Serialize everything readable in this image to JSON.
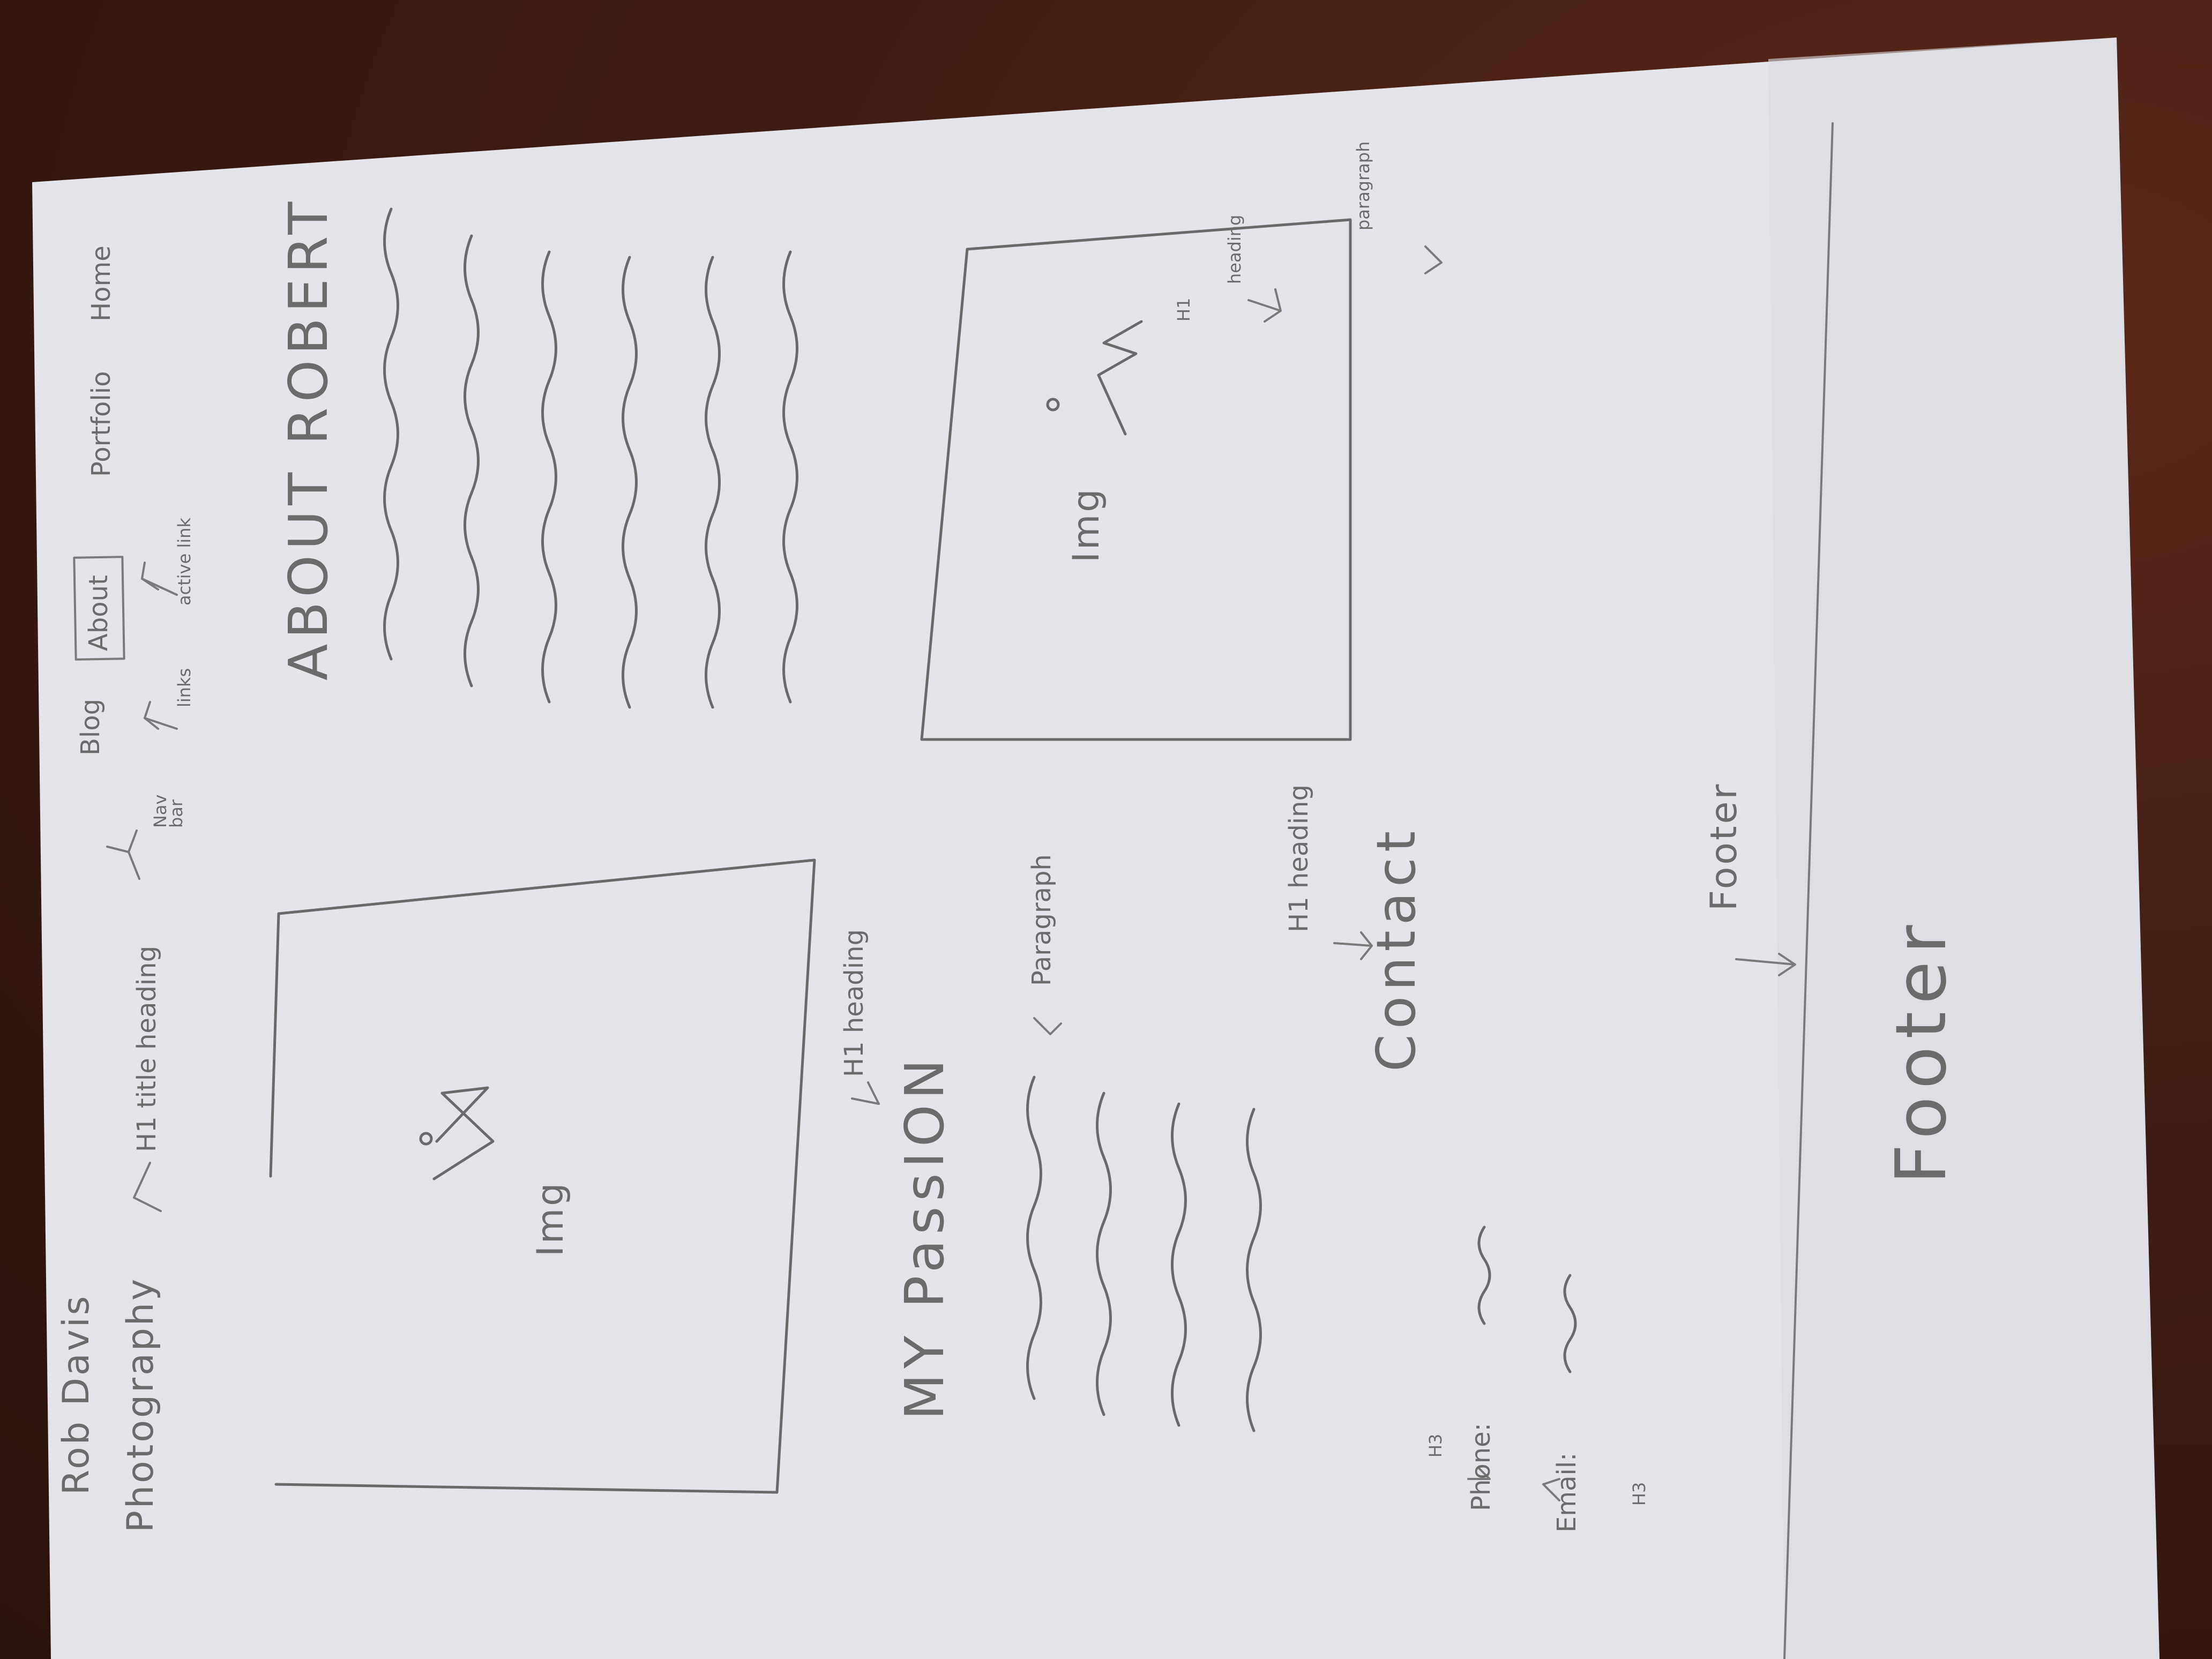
{
  "photo": {
    "subject": "hand-drawn website wireframe sketch on paper",
    "colors": {
      "table": "#3d1c14",
      "paper": "#e6e7ec",
      "pencil": "#6a6a6a"
    }
  },
  "sketch": {
    "site_title_line1": "Rob Davis",
    "site_title_line2": "Photography",
    "title_note": "H1 title heading",
    "nav_bar_label_line1": "Nav",
    "nav_bar_label_line2": "bar",
    "nav_links": [
      "Blog",
      "About",
      "Portfolio",
      "Home"
    ],
    "links_note": "links",
    "active_link_note": "active link",
    "about_heading": "ABOUT ROBERT",
    "about_h1_note": "H1",
    "about_heading_note": "heading",
    "about_paragraph_note": "paragraph",
    "img_label_1": "Img",
    "img_label_2": "Img",
    "passion_heading": "MY PassION",
    "passion_h1_note": "H1 heading",
    "paragraph_note": "Paragraph",
    "contact_heading": "Contact",
    "contact_h1_note": "H1 heading",
    "h3_note_1": "H3",
    "h3_note_2": "H3",
    "phone_label": "Phone:",
    "email_label": "Email:",
    "footer_note": "Footer",
    "footer_label": "Footer"
  }
}
